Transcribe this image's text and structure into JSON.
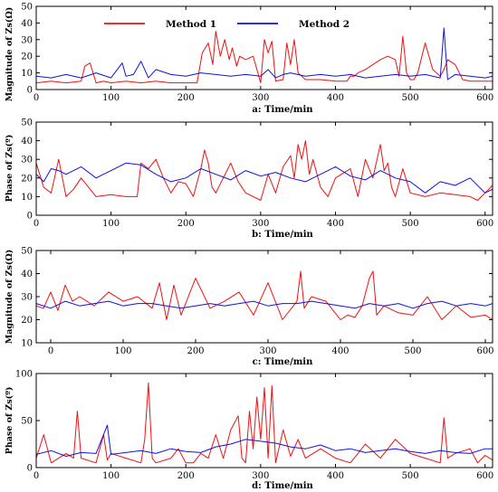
{
  "colors": {
    "method1": "#ee1111",
    "method2": "#1111dd",
    "axis": "#000000"
  },
  "legend": {
    "placement": "top-center",
    "items": [
      "Method 1",
      "Method 2"
    ]
  },
  "chart_data": [
    {
      "type": "line",
      "xlabel": "a:  Time/min",
      "ylabel": "Magnitude of Zs(Ω)",
      "xlim": [
        0,
        610
      ],
      "ylim": [
        0,
        50
      ],
      "xticks": [
        0,
        100,
        200,
        300,
        400,
        500,
        600
      ],
      "yticks": [
        0,
        10,
        20,
        30,
        40,
        50
      ],
      "grid": false,
      "series": [
        {
          "name": "Method 1",
          "color": "#ee1111",
          "x": [
            0,
            20,
            40,
            60,
            65,
            72,
            80,
            90,
            100,
            120,
            140,
            160,
            180,
            200,
            215,
            222,
            230,
            236,
            240,
            246,
            252,
            258,
            262,
            268,
            272,
            280,
            290,
            300,
            305,
            310,
            315,
            320,
            330,
            335,
            340,
            345,
            350,
            360,
            380,
            400,
            415,
            420,
            425,
            430,
            440,
            450,
            460,
            470,
            480,
            485,
            490,
            495,
            500,
            505,
            510,
            520,
            530,
            540,
            545,
            550,
            560,
            570,
            580,
            600,
            610
          ],
          "values": [
            4,
            5,
            4,
            5,
            14,
            16,
            4,
            5,
            4,
            5,
            4,
            5,
            4,
            4,
            4,
            22,
            28,
            15,
            35,
            20,
            30,
            18,
            25,
            14,
            20,
            18,
            20,
            4,
            30,
            22,
            29,
            5,
            6,
            28,
            15,
            30,
            10,
            6,
            6,
            5,
            5,
            8,
            8,
            10,
            12,
            15,
            18,
            20,
            18,
            8,
            32,
            10,
            6,
            6,
            10,
            28,
            12,
            8,
            12,
            18,
            15,
            6,
            5,
            5,
            5
          ]
        },
        {
          "name": "Method 2",
          "color": "#1111dd",
          "x": [
            0,
            20,
            40,
            60,
            80,
            100,
            115,
            120,
            130,
            140,
            150,
            160,
            180,
            200,
            220,
            240,
            260,
            280,
            300,
            310,
            320,
            330,
            340,
            360,
            380,
            400,
            420,
            440,
            460,
            480,
            500,
            520,
            540,
            545,
            550,
            560,
            580,
            600,
            610
          ],
          "values": [
            8,
            7,
            9,
            7,
            10,
            7,
            16,
            8,
            9,
            17,
            7,
            12,
            9,
            8,
            10,
            9,
            8,
            9,
            8,
            12,
            7,
            9,
            10,
            8,
            9,
            8,
            9,
            7,
            8,
            9,
            8,
            9,
            7,
            37,
            6,
            9,
            8,
            7,
            8
          ]
        }
      ]
    },
    {
      "type": "line",
      "xlabel": "b:  Time/min",
      "ylabel": "Phase of Zs(º)",
      "xlim": [
        0,
        610
      ],
      "ylim": [
        0,
        50
      ],
      "xticks": [
        0,
        100,
        200,
        300,
        400,
        500,
        600
      ],
      "yticks": [
        0,
        10,
        20,
        30,
        40,
        50
      ],
      "grid": false,
      "series": [
        {
          "name": "Method 1",
          "color": "#ee1111",
          "x": [
            0,
            10,
            20,
            30,
            40,
            50,
            60,
            80,
            100,
            120,
            135,
            140,
            150,
            160,
            170,
            180,
            190,
            200,
            210,
            220,
            225,
            230,
            235,
            240,
            250,
            260,
            270,
            280,
            290,
            300,
            310,
            320,
            330,
            340,
            345,
            350,
            355,
            360,
            365,
            370,
            380,
            390,
            400,
            420,
            430,
            440,
            450,
            460,
            465,
            470,
            475,
            480,
            490,
            500,
            520,
            540,
            560,
            580,
            590,
            600,
            610
          ],
          "values": [
            28,
            15,
            12,
            30,
            10,
            14,
            20,
            10,
            11,
            10,
            10,
            28,
            25,
            30,
            20,
            12,
            18,
            17,
            10,
            25,
            35,
            28,
            15,
            12,
            20,
            28,
            18,
            12,
            10,
            8,
            22,
            12,
            26,
            32,
            20,
            38,
            30,
            40,
            22,
            30,
            15,
            10,
            20,
            25,
            10,
            30,
            20,
            38,
            24,
            28,
            15,
            10,
            25,
            12,
            10,
            12,
            11,
            10,
            8,
            12,
            16
          ]
        },
        {
          "name": "Method 2",
          "color": "#1111dd",
          "x": [
            0,
            10,
            20,
            30,
            40,
            60,
            80,
            100,
            120,
            140,
            160,
            180,
            200,
            220,
            240,
            260,
            280,
            300,
            320,
            340,
            360,
            380,
            400,
            420,
            440,
            460,
            480,
            500,
            520,
            540,
            560,
            580,
            600,
            610
          ],
          "values": [
            22,
            18,
            25,
            24,
            22,
            26,
            20,
            24,
            28,
            27,
            22,
            18,
            20,
            25,
            22,
            19,
            24,
            21,
            23,
            20,
            18,
            22,
            26,
            21,
            19,
            24,
            20,
            18,
            12,
            18,
            16,
            20,
            12,
            14
          ]
        }
      ]
    },
    {
      "type": "line",
      "xlabel": "c:  Time/min",
      "ylabel": "Magnitude of Zs(Ω)",
      "xlim": [
        -20,
        610
      ],
      "ylim": [
        10,
        50
      ],
      "xticks": [
        0,
        100,
        200,
        300,
        400,
        500,
        600
      ],
      "yticks": [
        10,
        20,
        30,
        40,
        50
      ],
      "grid": false,
      "series": [
        {
          "name": "Method 1",
          "color": "#ee1111",
          "x": [
            -20,
            -10,
            0,
            10,
            20,
            30,
            40,
            60,
            80,
            100,
            120,
            140,
            150,
            160,
            170,
            180,
            190,
            200,
            220,
            240,
            260,
            280,
            300,
            320,
            340,
            345,
            350,
            360,
            380,
            390,
            400,
            410,
            420,
            430,
            440,
            445,
            450,
            460,
            480,
            500,
            520,
            540,
            560,
            580,
            600,
            610
          ],
          "values": [
            26,
            25,
            32,
            24,
            35,
            28,
            30,
            26,
            32,
            28,
            30,
            25,
            36,
            20,
            35,
            22,
            30,
            38,
            25,
            28,
            32,
            22,
            36,
            20,
            28,
            41,
            25,
            30,
            28,
            24,
            20,
            22,
            21,
            26,
            38,
            41,
            22,
            26,
            23,
            22,
            30,
            20,
            26,
            21,
            22,
            20
          ]
        },
        {
          "name": "Method 2",
          "color": "#1111dd",
          "x": [
            -20,
            0,
            20,
            40,
            60,
            80,
            100,
            120,
            140,
            160,
            180,
            200,
            220,
            240,
            260,
            280,
            300,
            320,
            340,
            360,
            380,
            400,
            420,
            440,
            460,
            480,
            500,
            520,
            540,
            560,
            580,
            600,
            610
          ],
          "values": [
            27,
            25,
            28,
            26,
            27,
            28,
            26,
            27,
            27,
            26,
            25,
            26,
            27,
            26,
            27,
            28,
            26,
            27,
            27,
            28,
            27,
            26,
            25,
            27,
            26,
            27,
            25,
            27,
            28,
            26,
            27,
            26,
            27
          ]
        }
      ]
    },
    {
      "type": "line",
      "xlabel": "d:  Time/min",
      "ylabel": "Phase of Zs(º)",
      "xlim": [
        0,
        610
      ],
      "ylim": [
        0,
        100
      ],
      "xticks": [
        0,
        100,
        200,
        300,
        400,
        500,
        600
      ],
      "yticks": [
        0,
        50,
        100
      ],
      "grid": false,
      "series": [
        {
          "name": "Method 1",
          "color": "#ee1111",
          "x": [
            0,
            10,
            20,
            40,
            50,
            55,
            60,
            80,
            90,
            95,
            100,
            120,
            140,
            145,
            150,
            155,
            160,
            180,
            190,
            200,
            210,
            220,
            230,
            240,
            250,
            260,
            270,
            275,
            280,
            285,
            290,
            295,
            300,
            305,
            310,
            315,
            320,
            330,
            340,
            350,
            360,
            380,
            400,
            420,
            440,
            460,
            480,
            500,
            520,
            540,
            545,
            550,
            560,
            580,
            590,
            600,
            610
          ],
          "values": [
            10,
            35,
            5,
            15,
            10,
            60,
            10,
            5,
            35,
            8,
            15,
            10,
            5,
            30,
            90,
            10,
            5,
            10,
            20,
            5,
            5,
            15,
            10,
            35,
            10,
            40,
            55,
            10,
            5,
            60,
            20,
            75,
            30,
            85,
            10,
            87,
            5,
            40,
            12,
            30,
            10,
            20,
            10,
            5,
            25,
            10,
            30,
            15,
            10,
            5,
            53,
            10,
            15,
            20,
            5,
            13,
            8
          ]
        },
        {
          "name": "Method 2",
          "color": "#1111dd",
          "x": [
            0,
            20,
            40,
            60,
            80,
            95,
            100,
            120,
            140,
            160,
            180,
            200,
            220,
            240,
            260,
            280,
            300,
            320,
            340,
            360,
            380,
            400,
            420,
            440,
            460,
            480,
            500,
            520,
            540,
            560,
            580,
            600,
            610
          ],
          "values": [
            14,
            18,
            12,
            16,
            15,
            45,
            14,
            16,
            18,
            15,
            20,
            17,
            16,
            22,
            25,
            30,
            28,
            26,
            22,
            20,
            24,
            18,
            20,
            16,
            18,
            20,
            17,
            15,
            18,
            16,
            15,
            20,
            20
          ]
        }
      ]
    }
  ]
}
